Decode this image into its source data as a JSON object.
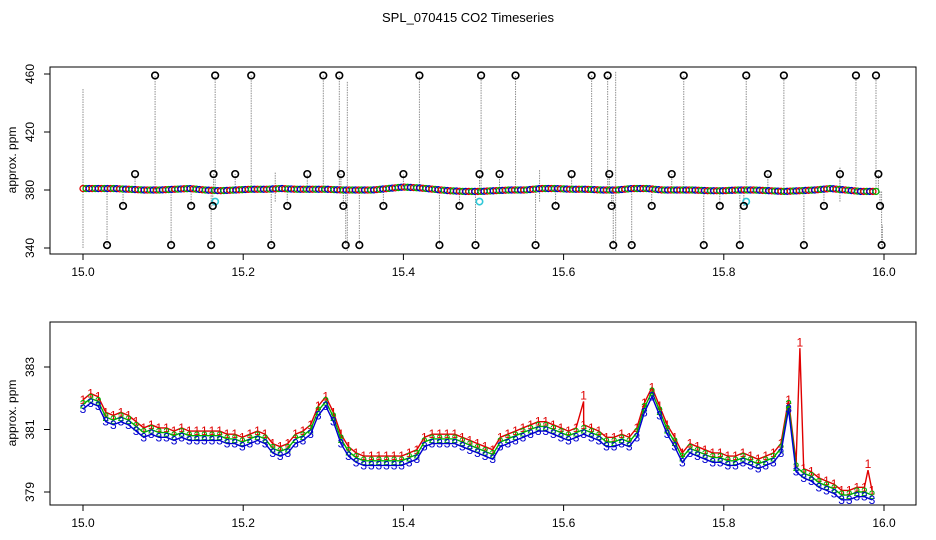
{
  "figure": {
    "title": "SPL_070415  CO2 Timeseries",
    "colors": {
      "black": "#000000",
      "red": "#e00000",
      "green": "#00b000",
      "blue": "#0000d0",
      "cyan": "#30c8d8",
      "grey": "#909090"
    }
  },
  "chart_data": [
    {
      "type": "scatter",
      "panel": "top",
      "title": "SPL_070415  CO2 Timeseries",
      "xlabel": "",
      "ylabel": "approx. ppm",
      "xlim": [
        15.0,
        16.0
      ],
      "ylim": [
        338,
        462
      ],
      "xticks": [
        15.0,
        15.2,
        15.4,
        15.6,
        15.8,
        16.0
      ],
      "xtick_labels": [
        "15.0",
        "15.2",
        "15.4",
        "15.6",
        "15.8",
        "16.0"
      ],
      "yticks": [
        340,
        380,
        420,
        460
      ],
      "ytick_labels": [
        "340",
        "380",
        "420",
        "460"
      ],
      "baseline_series": [
        {
          "name": "series-1",
          "color": "red"
        },
        {
          "name": "series-2",
          "color": "green"
        },
        {
          "name": "series-3",
          "color": "blue"
        }
      ],
      "baseline_x_start": 15.0,
      "baseline_x_end": 15.99,
      "baseline_values": [
        381,
        381,
        381,
        380.5,
        380,
        380,
        380.5,
        381,
        380,
        379.5,
        380,
        380.5,
        380.5,
        381,
        380.5,
        380.5,
        380.5,
        380,
        380,
        380,
        381,
        382,
        381.5,
        380.5,
        379.5,
        379,
        379,
        379.5,
        380,
        380,
        381,
        381,
        380.5,
        380.5,
        380,
        380,
        381,
        381,
        380,
        380,
        380,
        379.5,
        379.5,
        380,
        380,
        379.5,
        379,
        379.5,
        380,
        381,
        380,
        379,
        379
      ],
      "outliers_x": [
        15.03,
        15.05,
        15.065,
        15.09,
        15.11,
        15.135,
        15.16,
        15.162,
        15.163,
        15.165,
        15.19,
        15.21,
        15.235,
        15.255,
        15.28,
        15.3,
        15.32,
        15.322,
        15.325,
        15.328,
        15.345,
        15.375,
        15.4,
        15.42,
        15.445,
        15.47,
        15.49,
        15.495,
        15.497,
        15.52,
        15.54,
        15.565,
        15.59,
        15.61,
        15.635,
        15.655,
        15.657,
        15.66,
        15.662,
        15.685,
        15.71,
        15.735,
        15.75,
        15.775,
        15.795,
        15.82,
        15.825,
        15.828,
        15.855,
        15.875,
        15.9,
        15.925,
        15.945,
        15.965,
        15.99,
        15.993,
        15.995,
        15.997
      ],
      "outliers_y": [
        342,
        369,
        391,
        459,
        342,
        369,
        342,
        369,
        391,
        459,
        391,
        459,
        342,
        369,
        391,
        459,
        459,
        391,
        369,
        342,
        342,
        369,
        391,
        459,
        342,
        369,
        342,
        391,
        459,
        391,
        459,
        342,
        369,
        391,
        459,
        459,
        391,
        369,
        342,
        342,
        369,
        391,
        459,
        342,
        369,
        342,
        369,
        459,
        391,
        459,
        342,
        369,
        391,
        459,
        459,
        391,
        369,
        342
      ],
      "cyan_x": [
        15.165,
        15.495,
        15.828
      ],
      "cyan_y": [
        372,
        372,
        372
      ],
      "spike_lines": [
        {
          "x": 15.0,
          "y_from": 340,
          "y_to": 450
        },
        {
          "x": 15.33,
          "y_from": 338,
          "y_to": 455
        },
        {
          "x": 15.665,
          "y_from": 338,
          "y_to": 462
        },
        {
          "x": 15.24,
          "y_from": 372,
          "y_to": 392
        },
        {
          "x": 15.57,
          "y_from": 372,
          "y_to": 394
        },
        {
          "x": 15.945,
          "y_from": 372,
          "y_to": 396
        },
        {
          "x": 15.998,
          "y_from": 340,
          "y_to": 356
        }
      ]
    },
    {
      "type": "line",
      "panel": "bottom",
      "xlabel": "",
      "ylabel": "approx. ppm",
      "xlim": [
        15.0,
        16.0
      ],
      "ylim": [
        378.4,
        384.2
      ],
      "xticks": [
        15.0,
        15.2,
        15.4,
        15.6,
        15.8,
        16.0
      ],
      "xtick_labels": [
        "15.0",
        "15.2",
        "15.4",
        "15.6",
        "15.8",
        "16.0"
      ],
      "yticks": [
        379,
        381,
        383
      ],
      "ytick_labels": [
        "379",
        "381",
        "383"
      ],
      "x_start": 15.0,
      "x_end": 15.985,
      "series": [
        {
          "name": "1",
          "marker": "1",
          "color": "red",
          "offset": 0.15
        },
        {
          "name": "2",
          "marker": "2",
          "color": "green",
          "offset": 0.0
        },
        {
          "name": "3",
          "marker": "3",
          "color": "blue",
          "offset": -0.15
        }
      ],
      "base_values": [
        381.8,
        382.0,
        381.9,
        381.4,
        381.3,
        381.4,
        381.3,
        381.1,
        380.9,
        381.0,
        380.9,
        380.9,
        380.8,
        380.9,
        380.8,
        380.8,
        380.8,
        380.8,
        380.8,
        380.7,
        380.7,
        380.6,
        380.7,
        380.8,
        380.7,
        380.4,
        380.3,
        380.4,
        380.7,
        380.8,
        381.0,
        381.6,
        381.9,
        381.4,
        380.7,
        380.3,
        380.1,
        380.0,
        380.0,
        380.0,
        380.0,
        380.0,
        380.0,
        380.1,
        380.2,
        380.6,
        380.7,
        380.7,
        380.7,
        380.7,
        380.6,
        380.5,
        380.4,
        380.3,
        380.2,
        380.6,
        380.7,
        380.8,
        380.9,
        381.0,
        381.1,
        381.1,
        381.0,
        380.9,
        380.8,
        380.9,
        381.0,
        380.9,
        380.8,
        380.6,
        380.6,
        380.7,
        380.6,
        380.9,
        381.7,
        382.2,
        381.6,
        381.0,
        380.6,
        380.1,
        380.4,
        380.3,
        380.2,
        380.1,
        380.1,
        380.0,
        380.0,
        380.1,
        380.0,
        379.9,
        380.0,
        380.1,
        380.4,
        381.8,
        379.8,
        379.6,
        379.5,
        379.3,
        379.2,
        379.1,
        378.9,
        378.9,
        379.0,
        379.0,
        378.9
      ],
      "spikes": [
        {
          "series": "1",
          "x": 15.625,
          "value": 381.9
        },
        {
          "series": "1",
          "x": 15.895,
          "value": 383.6
        },
        {
          "series": "1",
          "x": 15.98,
          "value": 379.7
        }
      ]
    }
  ]
}
